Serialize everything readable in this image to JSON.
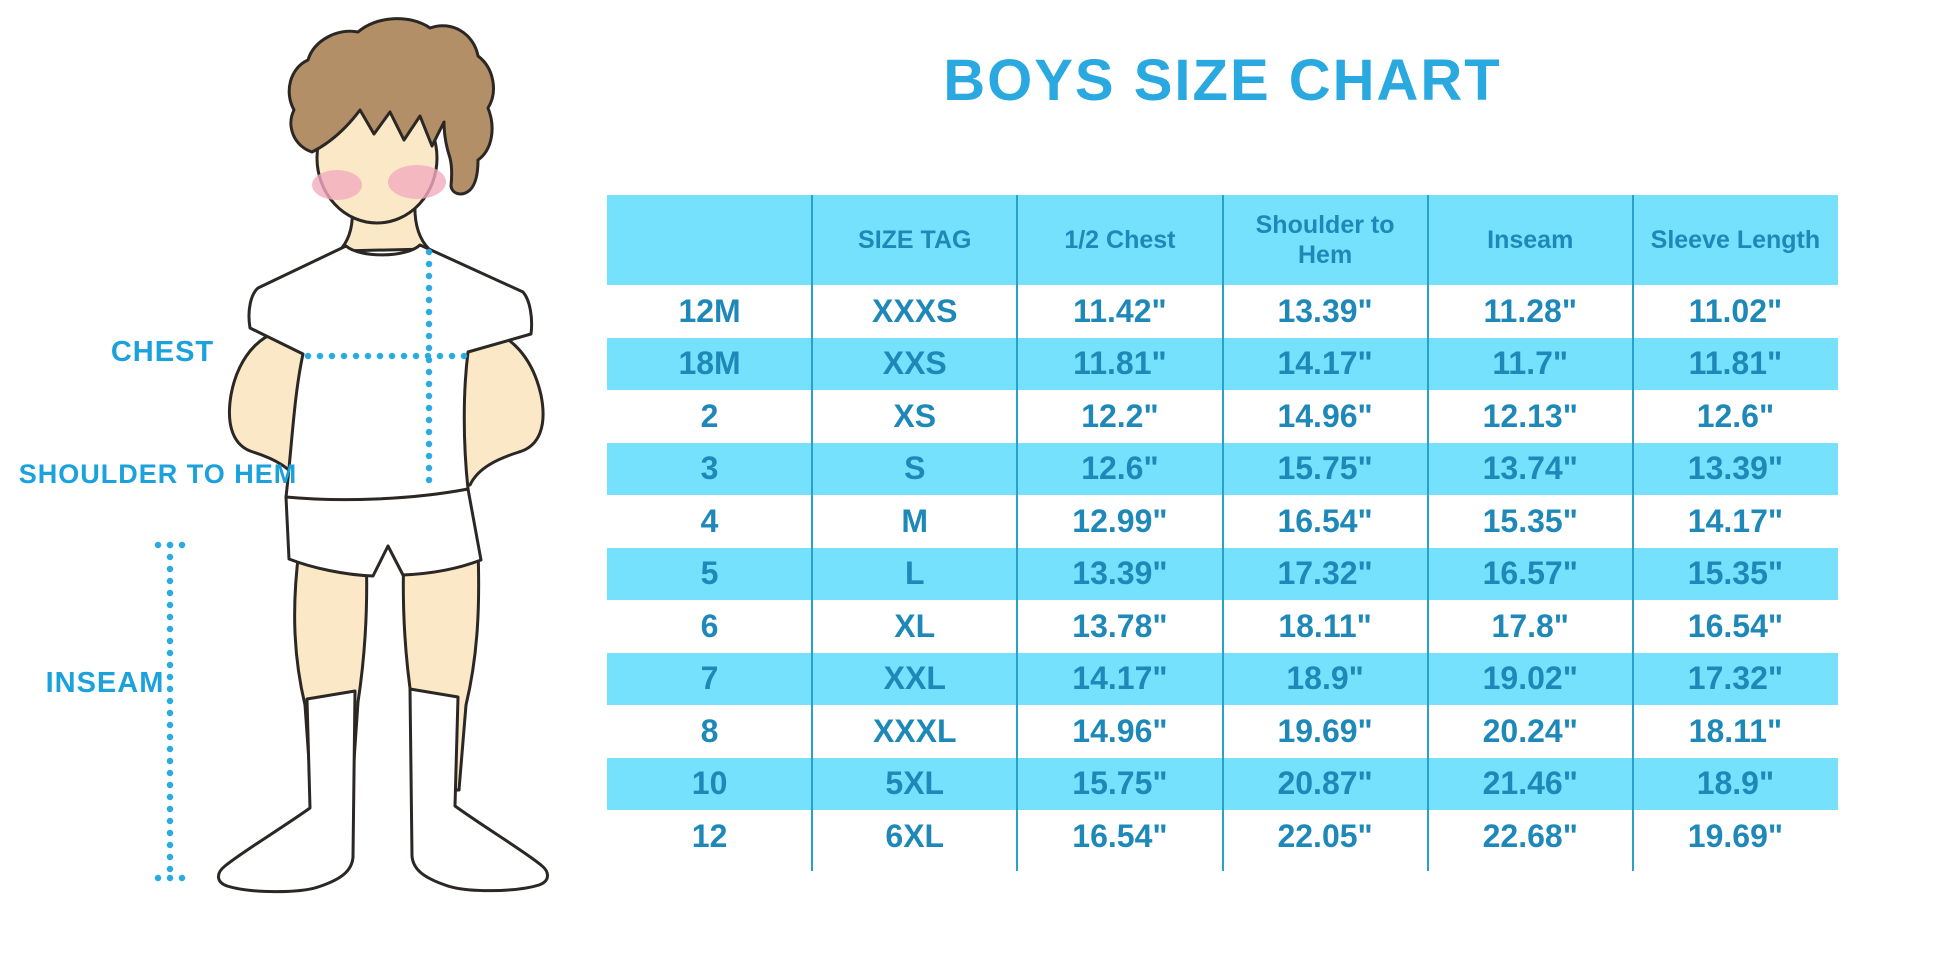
{
  "title": "BOYS SIZE CHART",
  "figure": {
    "labels": [
      {
        "id": "chest",
        "text": "CHEST"
      },
      {
        "id": "shoulder-to-hem",
        "text": "SHOULDER TO HEM"
      },
      {
        "id": "inseam",
        "text": "INSEAM"
      }
    ]
  },
  "colors": {
    "title-blue": "#2AA9E0",
    "label-blue": "#1BA2DC",
    "table-text": "#1E88B8",
    "stripe-cyan": "#76E1FC",
    "divider-blue": "#2BA0C8",
    "dot-blue": "#29ABE2",
    "skin": "#FBE8C7",
    "hair": "#B28F66",
    "blush": "#F2ABBE",
    "outline": "#2B2724"
  },
  "chart_data": {
    "type": "table",
    "title": "BOYS SIZE CHART",
    "columns": [
      "",
      "SIZE TAG",
      "1/2 Chest",
      "Shoulder to Hem",
      "Inseam",
      "Sleeve Length"
    ],
    "rows": [
      [
        "12M",
        "XXXS",
        "11.42\"",
        "13.39\"",
        "11.28\"",
        "11.02\""
      ],
      [
        "18M",
        "XXS",
        "11.81\"",
        "14.17\"",
        "11.7\"",
        "11.81\""
      ],
      [
        "2",
        "XS",
        "12.2\"",
        "14.96\"",
        "12.13\"",
        "12.6\""
      ],
      [
        "3",
        "S",
        "12.6\"",
        "15.75\"",
        "13.74\"",
        "13.39\""
      ],
      [
        "4",
        "M",
        "12.99\"",
        "16.54\"",
        "15.35\"",
        "14.17\""
      ],
      [
        "5",
        "L",
        "13.39\"",
        "17.32\"",
        "16.57\"",
        "15.35\""
      ],
      [
        "6",
        "XL",
        "13.78\"",
        "18.11\"",
        "17.8\"",
        "16.54\""
      ],
      [
        "7",
        "XXL",
        "14.17\"",
        "18.9\"",
        "19.02\"",
        "17.32\""
      ],
      [
        "8",
        "XXXL",
        "14.96\"",
        "19.69\"",
        "20.24\"",
        "18.11\""
      ],
      [
        "10",
        "5XL",
        "15.75\"",
        "20.87\"",
        "21.46\"",
        "18.9\""
      ],
      [
        "12",
        "6XL",
        "16.54\"",
        "22.05\"",
        "22.68\"",
        "19.69\""
      ]
    ],
    "striped": true,
    "stripe_colors": [
      "#FFFFFF",
      "#76E1FC"
    ]
  }
}
